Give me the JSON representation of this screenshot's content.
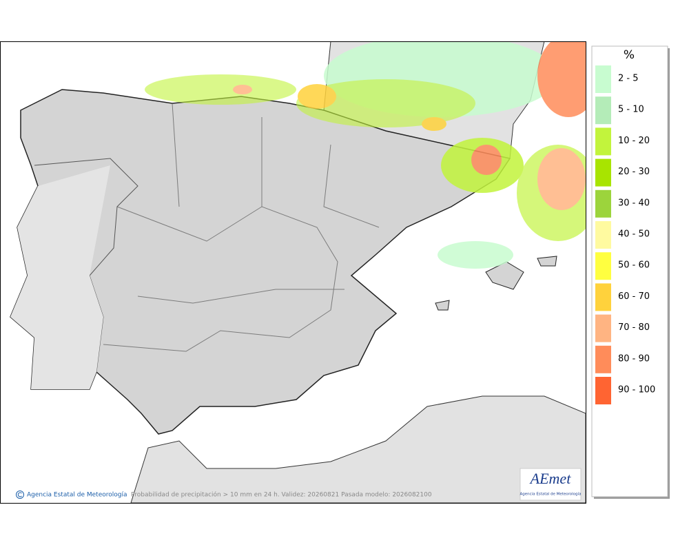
{
  "map": {
    "credit": "Agencia Estatal de Meteorología",
    "caption": "Probabilidad de precipitación > 10 mm en 24 h. Validez: 20260821 Pasada modelo: 2026082100",
    "logo": {
      "name": "AEmet",
      "subtitle": "Agencia Estatal de Meteorología"
    }
  },
  "legend": {
    "title": "%",
    "items": [
      {
        "label": "2 - 5",
        "color": "#c8fcd0"
      },
      {
        "label": "5 - 10",
        "color": "#b4ecb8"
      },
      {
        "label": "10 - 20",
        "color": "#c2f43c"
      },
      {
        "label": "20 - 30",
        "color": "#a8e400"
      },
      {
        "label": "30 - 40",
        "color": "#9cd43c"
      },
      {
        "label": "40 - 50",
        "color": "#fffaa0"
      },
      {
        "label": "50 - 60",
        "color": "#ffff40"
      },
      {
        "label": "60 - 70",
        "color": "#ffd23c"
      },
      {
        "label": "70 - 80",
        "color": "#ffb482"
      },
      {
        "label": "80 - 90",
        "color": "#ff8c5a"
      },
      {
        "label": "90 - 100",
        "color": "#ff6432"
      }
    ]
  }
}
